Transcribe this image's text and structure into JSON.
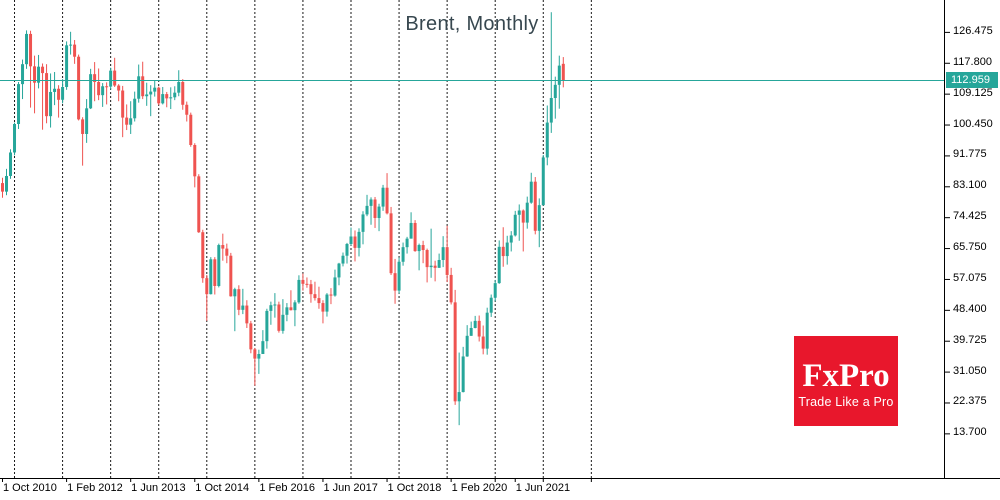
{
  "chart": {
    "title": "Brent, Monthly"
  },
  "price_scale": {
    "current": "112.959",
    "ticks": [
      "126.475",
      "117.800",
      "109.125",
      "100.450",
      "91.775",
      "83.100",
      "74.425",
      "65.750",
      "57.075",
      "48.400",
      "39.725",
      "31.050",
      "22.375",
      "13.700"
    ]
  },
  "time_scale": {
    "labels": [
      {
        "bar": 0,
        "text": "1 Oct 2010"
      },
      {
        "bar": 16,
        "text": "1 Feb 2012"
      },
      {
        "bar": 32,
        "text": "1 Jun 2013"
      },
      {
        "bar": 48,
        "text": "1 Oct 2014"
      },
      {
        "bar": 64,
        "text": "1 Feb 2016"
      },
      {
        "bar": 80,
        "text": "1 Jun 2017"
      },
      {
        "bar": 96,
        "text": "1 Oct 2018"
      },
      {
        "bar": 112,
        "text": "1 Feb 2020"
      },
      {
        "bar": 128,
        "text": "1 Jun 2021"
      }
    ],
    "extra_tick_bars": [
      123,
      135,
      147
    ]
  },
  "logo": {
    "brand": "FxPro",
    "tagline": "Trade Like a Pro"
  },
  "colors": {
    "bull": "#26a69a",
    "bear": "#ef5350",
    "price_line": "#26a69a",
    "price_label_bg": "#26a69a",
    "separator": "#000000",
    "axis": "#000000",
    "title_text": "#37474f",
    "logo_bg": "#e8172c",
    "background": "#ffffff"
  },
  "chart_data": {
    "type": "candlestick",
    "title": "Brent, Monthly",
    "symbol": "Brent",
    "timeframe": "Monthly",
    "start_month": "2010-10",
    "end_month": "2022-06",
    "current_price": 112.959,
    "y_axis": {
      "tick_step": 8.675,
      "visible_range": [
        1.2,
        135.4
      ],
      "grid": "off"
    },
    "x_axis": {
      "separators": "dashed vertical line at 1 Jan of each year 2011-2023"
    },
    "columns": [
      "open",
      "high",
      "low",
      "close"
    ],
    "candles": [
      [
        84.0,
        85.5,
        79.9,
        81.6
      ],
      [
        81.6,
        88.0,
        80.6,
        86.0
      ],
      [
        86.0,
        93.5,
        85.2,
        92.6
      ],
      [
        92.6,
        101.0,
        91.8,
        100.6
      ],
      [
        100.6,
        112.4,
        99.2,
        111.8
      ],
      [
        111.8,
        118.7,
        107.6,
        117.4
      ],
      [
        117.4,
        126.9,
        116.1,
        125.9
      ],
      [
        125.9,
        126.8,
        105.2,
        116.8
      ],
      [
        116.8,
        119.8,
        103.6,
        112.2
      ],
      [
        112.2,
        120.0,
        110.6,
        116.7
      ],
      [
        116.7,
        117.6,
        99.0,
        114.9
      ],
      [
        114.9,
        117.4,
        100.8,
        102.8
      ],
      [
        102.8,
        114.8,
        99.6,
        109.6
      ],
      [
        109.6,
        115.2,
        105.9,
        110.5
      ],
      [
        110.5,
        111.5,
        102.4,
        107.4
      ],
      [
        107.4,
        113.2,
        106.4,
        111.0
      ],
      [
        111.0,
        123.8,
        110.2,
        122.7
      ],
      [
        122.7,
        126.5,
        120.1,
        122.9
      ],
      [
        122.9,
        124.2,
        117.5,
        119.5
      ],
      [
        119.5,
        120.1,
        101.6,
        101.9
      ],
      [
        101.9,
        102.5,
        88.9,
        97.8
      ],
      [
        97.8,
        107.6,
        95.3,
        105.0
      ],
      [
        105.0,
        116.1,
        104.8,
        114.6
      ],
      [
        114.6,
        118.0,
        107.0,
        112.4
      ],
      [
        112.4,
        116.2,
        107.3,
        108.7
      ],
      [
        108.7,
        112.1,
        105.4,
        111.2
      ],
      [
        111.2,
        112.3,
        106.1,
        111.1
      ],
      [
        111.1,
        116.4,
        110.3,
        115.6
      ],
      [
        115.6,
        119.2,
        111.0,
        111.4
      ],
      [
        111.4,
        111.8,
        107.0,
        110.0
      ],
      [
        110.0,
        111.3,
        96.9,
        102.4
      ],
      [
        102.4,
        106.1,
        98.9,
        100.4
      ],
      [
        100.4,
        107.0,
        97.8,
        102.2
      ],
      [
        102.2,
        109.7,
        101.3,
        107.7
      ],
      [
        107.7,
        117.3,
        106.6,
        114.0
      ],
      [
        114.0,
        118.1,
        107.6,
        108.4
      ],
      [
        108.4,
        112.2,
        105.7,
        108.9
      ],
      [
        108.9,
        111.5,
        102.8,
        109.7
      ],
      [
        109.7,
        112.8,
        108.3,
        110.8
      ],
      [
        110.8,
        111.1,
        105.9,
        106.4
      ],
      [
        106.4,
        111.0,
        106.1,
        109.0
      ],
      [
        109.0,
        109.6,
        105.3,
        107.8
      ],
      [
        107.8,
        110.9,
        104.8,
        108.1
      ],
      [
        108.1,
        111.2,
        107.3,
        109.4
      ],
      [
        109.4,
        115.7,
        108.4,
        112.4
      ],
      [
        112.4,
        113.2,
        104.6,
        106.0
      ],
      [
        106.0,
        106.9,
        101.3,
        103.2
      ],
      [
        103.2,
        103.8,
        94.2,
        94.7
      ],
      [
        94.7,
        95.2,
        82.8,
        85.9
      ],
      [
        85.9,
        86.5,
        70.0,
        70.2
      ],
      [
        70.2,
        70.9,
        56.0,
        57.3
      ],
      [
        57.3,
        58.2,
        45.3,
        52.8
      ],
      [
        52.8,
        63.2,
        52.7,
        62.6
      ],
      [
        62.6,
        63.2,
        52.7,
        55.1
      ],
      [
        55.1,
        67.0,
        54.7,
        66.6
      ],
      [
        66.6,
        69.8,
        62.2,
        65.6
      ],
      [
        65.6,
        67.0,
        61.5,
        63.6
      ],
      [
        63.6,
        64.4,
        52.1,
        52.2
      ],
      [
        52.2,
        54.6,
        42.4,
        54.2
      ],
      [
        54.2,
        55.3,
        46.9,
        48.4
      ],
      [
        48.4,
        54.3,
        47.2,
        49.6
      ],
      [
        49.6,
        51.1,
        43.3,
        44.6
      ],
      [
        44.6,
        45.3,
        36.2,
        37.3
      ],
      [
        37.3,
        37.7,
        27.1,
        34.7
      ],
      [
        34.7,
        37.2,
        30.4,
        36.0
      ],
      [
        36.0,
        42.7,
        36.0,
        39.6
      ],
      [
        39.6,
        48.7,
        37.5,
        48.1
      ],
      [
        48.1,
        50.7,
        44.2,
        49.7
      ],
      [
        49.7,
        53.1,
        46.2,
        49.9
      ],
      [
        49.9,
        50.7,
        42.0,
        42.5
      ],
      [
        42.5,
        51.4,
        41.7,
        47.0
      ],
      [
        47.0,
        50.3,
        45.2,
        49.1
      ],
      [
        49.1,
        53.9,
        48.2,
        48.3
      ],
      [
        48.3,
        51.1,
        43.8,
        50.5
      ],
      [
        50.5,
        58.1,
        50.1,
        56.8
      ],
      [
        56.8,
        58.6,
        53.8,
        55.7
      ],
      [
        55.7,
        57.5,
        54.6,
        55.6
      ],
      [
        55.6,
        56.8,
        50.4,
        52.8
      ],
      [
        52.8,
        56.3,
        51.0,
        51.7
      ],
      [
        51.7,
        54.9,
        48.7,
        50.3
      ],
      [
        50.3,
        51.1,
        44.6,
        47.9
      ],
      [
        47.9,
        53.1,
        46.5,
        52.7
      ],
      [
        52.7,
        54.5,
        50.0,
        52.4
      ],
      [
        52.4,
        59.7,
        52.1,
        57.5
      ],
      [
        57.5,
        61.6,
        55.3,
        61.4
      ],
      [
        61.4,
        64.5,
        60.6,
        63.6
      ],
      [
        63.6,
        67.2,
        61.4,
        66.9
      ],
      [
        66.9,
        71.5,
        66.5,
        69.0
      ],
      [
        69.0,
        70.7,
        62.0,
        65.8
      ],
      [
        65.8,
        71.3,
        63.4,
        70.3
      ],
      [
        70.3,
        76.1,
        66.8,
        75.2
      ],
      [
        75.2,
        80.7,
        74.7,
        77.6
      ],
      [
        77.6,
        80.0,
        72.3,
        79.4
      ],
      [
        79.4,
        80.1,
        71.4,
        74.2
      ],
      [
        74.2,
        78.2,
        70.5,
        77.4
      ],
      [
        77.4,
        83.5,
        76.2,
        82.7
      ],
      [
        82.7,
        86.8,
        75.2,
        75.5
      ],
      [
        75.5,
        77.3,
        58.2,
        58.7
      ],
      [
        58.7,
        62.7,
        50.1,
        53.8
      ],
      [
        53.8,
        63.1,
        53.0,
        61.9
      ],
      [
        61.9,
        67.3,
        60.8,
        66.0
      ],
      [
        66.0,
        68.9,
        64.2,
        68.4
      ],
      [
        68.4,
        75.8,
        68.4,
        72.8
      ],
      [
        72.8,
        73.6,
        64.7,
        64.9
      ],
      [
        64.9,
        67.0,
        59.5,
        66.6
      ],
      [
        66.6,
        67.8,
        61.5,
        65.2
      ],
      [
        65.2,
        65.6,
        56.1,
        60.4
      ],
      [
        60.4,
        71.2,
        57.4,
        60.8
      ],
      [
        60.8,
        62.2,
        56.4,
        60.2
      ],
      [
        60.2,
        64.2,
        60.2,
        62.4
      ],
      [
        62.4,
        69.1,
        60.4,
        66.0
      ],
      [
        66.0,
        72.0,
        56.2,
        58.2
      ],
      [
        58.2,
        60.2,
        49.9,
        50.5
      ],
      [
        50.5,
        54.0,
        21.7,
        22.7
      ],
      [
        22.7,
        36.4,
        16.0,
        25.3
      ],
      [
        25.3,
        38.0,
        25.2,
        35.3
      ],
      [
        35.3,
        44.1,
        35.2,
        41.1
      ],
      [
        41.1,
        45.1,
        41.1,
        43.3
      ],
      [
        43.3,
        46.7,
        43.2,
        45.3
      ],
      [
        45.3,
        46.8,
        39.5,
        40.9
      ],
      [
        40.9,
        44.0,
        35.9,
        37.5
      ],
      [
        37.5,
        49.0,
        35.8,
        47.6
      ],
      [
        47.6,
        52.7,
        46.4,
        51.8
      ],
      [
        51.8,
        56.8,
        50.8,
        55.9
      ],
      [
        55.9,
        67.9,
        55.7,
        66.1
      ],
      [
        66.1,
        71.6,
        60.5,
        63.5
      ],
      [
        63.5,
        69.2,
        61.1,
        67.3
      ],
      [
        67.3,
        70.5,
        64.8,
        69.3
      ],
      [
        69.3,
        76.2,
        69.0,
        75.1
      ],
      [
        75.1,
        78.0,
        67.8,
        76.3
      ],
      [
        76.3,
        76.6,
        64.8,
        72.9
      ],
      [
        72.9,
        80.2,
        71.2,
        78.5
      ],
      [
        78.5,
        86.9,
        78.2,
        84.4
      ],
      [
        84.4,
        85.7,
        69.6,
        70.6
      ],
      [
        70.6,
        79.7,
        66.0,
        77.8
      ],
      [
        77.8,
        91.9,
        77.7,
        91.2
      ],
      [
        91.2,
        105.8,
        89.0,
        101.0
      ],
      [
        101.0,
        132.0,
        98.1,
        107.9
      ],
      [
        107.9,
        113.9,
        102.1,
        111.6
      ],
      [
        111.6,
        119.8,
        104.9,
        117.0
      ],
      [
        117.5,
        119.4,
        110.9,
        112.959
      ]
    ]
  }
}
